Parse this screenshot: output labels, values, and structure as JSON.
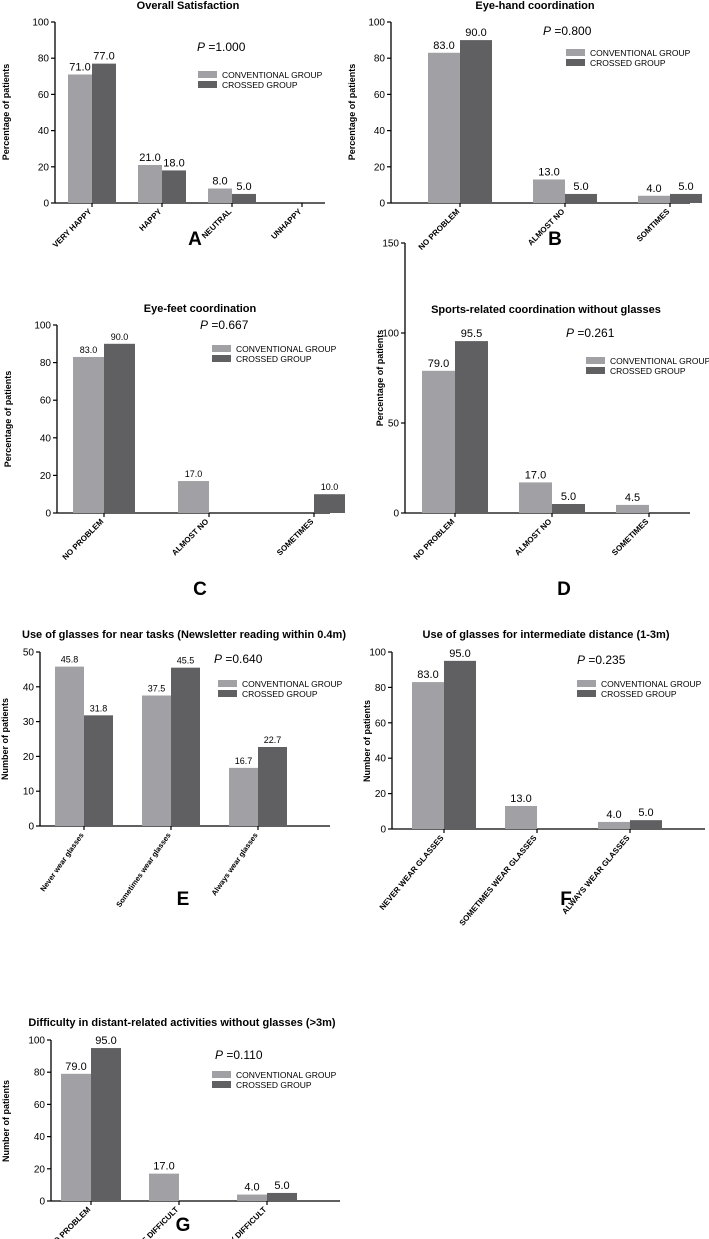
{
  "colors": {
    "conventional": "#a0a0a5",
    "crossed": "#606063",
    "axis": "#000000",
    "text": "#000000"
  },
  "chart_data": [
    {
      "panel": "A",
      "type": "bar",
      "title": "Overall Satisfaction",
      "ylabel": "Percentage of patients",
      "xlabel": "",
      "ylim": [
        0,
        100
      ],
      "yticks": [
        0,
        20,
        40,
        60,
        80,
        100
      ],
      "categories": [
        "VERY HAPPY",
        "HAPPY",
        "NEUTRAL",
        "UNHAPPY"
      ],
      "series": [
        {
          "name": "CONVENTIONAL GROUP",
          "values": [
            71.0,
            21.0,
            8.0,
            0
          ]
        },
        {
          "name": "CROSSED GROUP",
          "values": [
            77.0,
            18.0,
            5.0,
            0
          ]
        }
      ],
      "labels": [
        [
          "71.0",
          "21.0",
          "8.0",
          ""
        ],
        [
          "77.0",
          "18.0",
          "5.0",
          ""
        ]
      ],
      "p_value": "=1.000"
    },
    {
      "panel": "B",
      "type": "bar",
      "title": "Eye-hand coordination",
      "ylabel": "Percentage of patients",
      "xlabel": "",
      "ylim": [
        0,
        100
      ],
      "yticks": [
        0,
        20,
        40,
        60,
        80,
        100
      ],
      "categories": [
        "NO PROBLEM",
        "ALMOST NO",
        "SOMTIMES"
      ],
      "series": [
        {
          "name": "CONVENTIONAL GROUP",
          "values": [
            83.0,
            13.0,
            4.0
          ]
        },
        {
          "name": "CROSSED GROUP",
          "values": [
            90.0,
            5.0,
            5.0
          ]
        }
      ],
      "labels": [
        [
          "83.0",
          "13.0",
          "4.0"
        ],
        [
          "90.0",
          "5.0",
          "5.0"
        ]
      ],
      "p_value": "=0.800"
    },
    {
      "panel": "C",
      "type": "bar",
      "title": "Eye-feet coordination",
      "ylabel": "Percentage of patients",
      "xlabel": "",
      "ylim": [
        0,
        100
      ],
      "yticks": [
        0,
        20,
        40,
        60,
        80,
        100
      ],
      "categories": [
        "NO PROBLEM",
        "ALMOST NO",
        "SOMETIMES"
      ],
      "series": [
        {
          "name": "CONVENTIONAL GROUP",
          "values": [
            83.0,
            17.0,
            0
          ]
        },
        {
          "name": "CROSSED GROUP",
          "values": [
            90.0,
            0,
            10.0
          ]
        }
      ],
      "labels": [
        [
          "83.0",
          "17.0",
          ""
        ],
        [
          "90.0",
          "",
          "10.0"
        ]
      ],
      "p_value": "=0.667"
    },
    {
      "panel": "D",
      "type": "bar",
      "title": "Sports-related coordination without glasses",
      "ylabel": "Percentage of patients",
      "xlabel": "",
      "ylim": [
        0,
        150
      ],
      "yticks": [
        0,
        50,
        100,
        150
      ],
      "categories": [
        "NO PROBLEM",
        "ALMOST NO",
        "SOMETIMES"
      ],
      "series": [
        {
          "name": "CONVENTIONAL GROUP",
          "values": [
            79.0,
            17.0,
            4.5
          ]
        },
        {
          "name": "CROSSED GROUP",
          "values": [
            95.5,
            5.0,
            0
          ]
        }
      ],
      "labels": [
        [
          "79.0",
          "17.0",
          "4.5"
        ],
        [
          "95.5",
          "5.0",
          ""
        ]
      ],
      "p_value": "=0.261"
    },
    {
      "panel": "E",
      "type": "bar",
      "title": "Use of glasses for near tasks (Newsletter reading within 0.4m)",
      "ylabel": "Number of patients",
      "xlabel": "",
      "ylim": [
        0,
        50
      ],
      "yticks": [
        0,
        10,
        20,
        30,
        40,
        50
      ],
      "categories": [
        "Never wear glasses",
        "Sometimes wear glasses",
        "Always wear glasses"
      ],
      "series": [
        {
          "name": "CONVENTIONAL GROUP",
          "values": [
            45.8,
            37.5,
            16.7
          ]
        },
        {
          "name": "CROSSED GROUP",
          "values": [
            31.8,
            45.5,
            22.7
          ]
        }
      ],
      "labels": [
        [
          "45.8",
          "37.5",
          "16.7"
        ],
        [
          "31.8",
          "45.5",
          "22.7"
        ]
      ],
      "p_value": "=0.640"
    },
    {
      "panel": "F",
      "type": "bar",
      "title": "Use of glasses for intermediate distance (1-3m)",
      "ylabel": "Number of patients",
      "xlabel": "",
      "ylim": [
        0,
        100
      ],
      "yticks": [
        0,
        20,
        40,
        60,
        80,
        100
      ],
      "categories": [
        "NEVER WEAR GLASSES",
        "SOMETIMES WEAR GLASSES",
        "ALWAYS WEAR GLASSES"
      ],
      "series": [
        {
          "name": "CONVENTIONAL GROUP",
          "values": [
            83.0,
            13.0,
            4.0
          ]
        },
        {
          "name": "CROSSED GROUP",
          "values": [
            95.0,
            0,
            5.0
          ]
        }
      ],
      "labels": [
        [
          "83.0",
          "13.0",
          "4.0"
        ],
        [
          "95.0",
          "",
          "5.0"
        ]
      ],
      "p_value": "=0.235"
    },
    {
      "panel": "G",
      "type": "bar",
      "title": "Difficulty in distant-related activities without glasses (>3m)",
      "ylabel": "Number of patients",
      "xlabel": "",
      "ylim": [
        0,
        100
      ],
      "yticks": [
        0,
        20,
        40,
        60,
        80,
        100
      ],
      "categories": [
        "NO PROBLEM",
        "LITTLE DIFFICULT",
        "VERY DIFFICULT"
      ],
      "series": [
        {
          "name": "CONVENTIONAL GROUP",
          "values": [
            79.0,
            17.0,
            4.0
          ]
        },
        {
          "name": "CROSSED GROUP",
          "values": [
            95.0,
            0,
            5.0
          ]
        }
      ],
      "labels": [
        [
          "79.0",
          "17.0",
          "4.0"
        ],
        [
          "95.0",
          "",
          "5.0"
        ]
      ],
      "p_value": "=0.110"
    }
  ]
}
